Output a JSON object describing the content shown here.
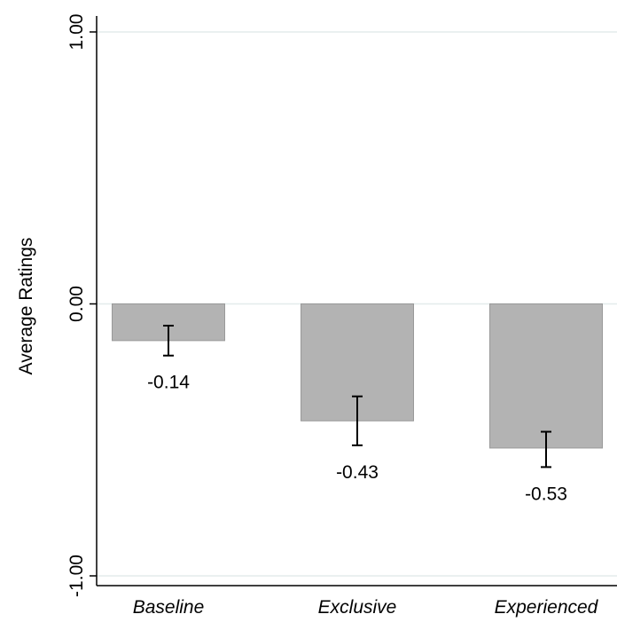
{
  "chart_data": {
    "type": "bar",
    "title": "",
    "xlabel": "",
    "ylabel": "Average Ratings",
    "ylim": [
      -1,
      1
    ],
    "yticks": [
      1,
      0,
      -1
    ],
    "ytick_labels": [
      "1.00",
      "0.00",
      "-1.00"
    ],
    "grid": true,
    "categories": [
      "Baseline",
      "Exclusive",
      "Experienced"
    ],
    "values": [
      -0.135,
      -0.43,
      -0.53
    ],
    "value_labels": [
      "-0.14",
      "-0.43",
      "-0.53"
    ],
    "error_bars": [
      {
        "low": -0.19,
        "high": -0.08
      },
      {
        "low": -0.52,
        "high": -0.34
      },
      {
        "low": -0.6,
        "high": -0.47
      }
    ],
    "colors": {
      "bar_fill": "#b3b3b3",
      "bar_stroke": "#999999",
      "grid": "#e3ecec",
      "axis": "#000000",
      "error_bar": "#000000"
    }
  }
}
